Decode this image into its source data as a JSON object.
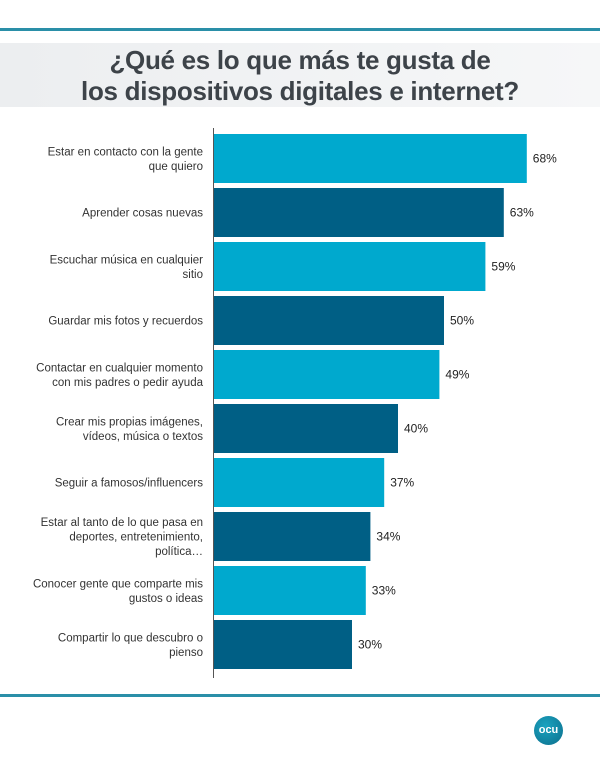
{
  "title_lines": [
    "¿Qué es lo que más te gusta de",
    "los dispositivos digitales e internet?"
  ],
  "logo_text": "ocu",
  "colors": {
    "light": "#00a9ce",
    "dark": "#005f85",
    "rule": "#2a8fa8"
  },
  "chart_data": {
    "type": "bar",
    "orientation": "horizontal",
    "title": "¿Qué es lo que más te gusta de los dispositivos digitales e internet?",
    "categories": [
      [
        "Estar en contacto con la gente",
        "que quiero"
      ],
      [
        "Aprender cosas nuevas"
      ],
      [
        "Escuchar música en cualquier",
        "sitio"
      ],
      [
        "Guardar mis fotos y recuerdos"
      ],
      [
        "Contactar en cualquier momento",
        "con mis padres o pedir ayuda"
      ],
      [
        "Crear mis propias imágenes,",
        "vídeos, música o textos"
      ],
      [
        "Seguir a famosos/influencers"
      ],
      [
        "Estar al tanto de lo que pasa en",
        "deportes, entretenimiento,",
        "política…"
      ],
      [
        "Conocer gente que comparte mis",
        "gustos o ideas"
      ],
      [
        "Compartir lo que descubro o",
        "pienso"
      ]
    ],
    "values": [
      68,
      63,
      59,
      50,
      49,
      40,
      37,
      34,
      33,
      30
    ],
    "labels": [
      "68%",
      "63%",
      "59%",
      "50%",
      "49%",
      "40%",
      "37%",
      "34%",
      "33%",
      "30%"
    ],
    "unit": "%",
    "xlim": [
      0,
      100
    ],
    "grid": false
  }
}
